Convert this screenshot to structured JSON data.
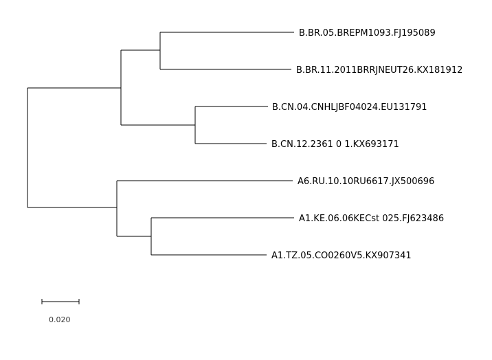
{
  "tree": {
    "tips": [
      {
        "id": "t1",
        "label": "B.BR.05.BREPM1093.FJ195089"
      },
      {
        "id": "t2",
        "label": "B.BR.11.2011BRRJNEUT26.KX181912"
      },
      {
        "id": "t3",
        "label": "B.CN.04.CNHLJBF04024.EU131791"
      },
      {
        "id": "t4",
        "label": "B.CN.12.2361 0 1.KX693171"
      },
      {
        "id": "t5",
        "label": "A6.RU.10.10RU6617.JX500696"
      },
      {
        "id": "t6",
        "label": "A1.KE.06.06KECst 025.FJ623486"
      },
      {
        "id": "t7",
        "label": "A1.TZ.05.CO0260V5.KX907341"
      }
    ],
    "scale_bar": {
      "length": 0.02,
      "label": "0.020"
    }
  }
}
